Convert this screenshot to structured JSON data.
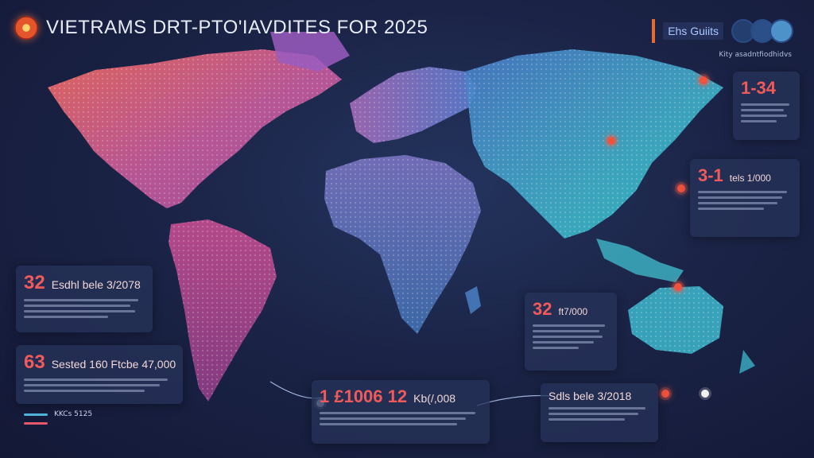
{
  "header": {
    "title": "VIETRAMS DRT-PTO'IAVDITES FOR 2025",
    "badge": "Ehs Guiits",
    "subtitle": "Kity asadntfiodhidvs"
  },
  "cards": [
    {
      "id": "south-america",
      "number": "32",
      "label": "Esdhl bele 3/2078"
    },
    {
      "id": "south-america-2",
      "number": "63",
      "label": "Sested 160 Ftcbe 47,000"
    },
    {
      "id": "africa-south",
      "number": "1 £1006 12",
      "label": "Kb(/,008"
    },
    {
      "id": "indian-ocean",
      "number": "32",
      "label": "ft7/000"
    },
    {
      "id": "bottom-right",
      "number": "",
      "label": "Sdls bele 3/2018"
    },
    {
      "id": "east-asia",
      "number": "3-1",
      "label": "tels 1/000"
    },
    {
      "id": "far-east",
      "number": "1-34",
      "label": ""
    }
  ],
  "legend": [
    {
      "label": "KKCs 5125",
      "color": "#4fb3d9"
    },
    {
      "label": "",
      "color": "#e8566a"
    }
  ],
  "colors": {
    "americas": "#e8566a",
    "europe": "#9a6fc8",
    "asia": "#3fb7c8",
    "africa": "#5a7fc0",
    "accent": "#f0523e"
  }
}
